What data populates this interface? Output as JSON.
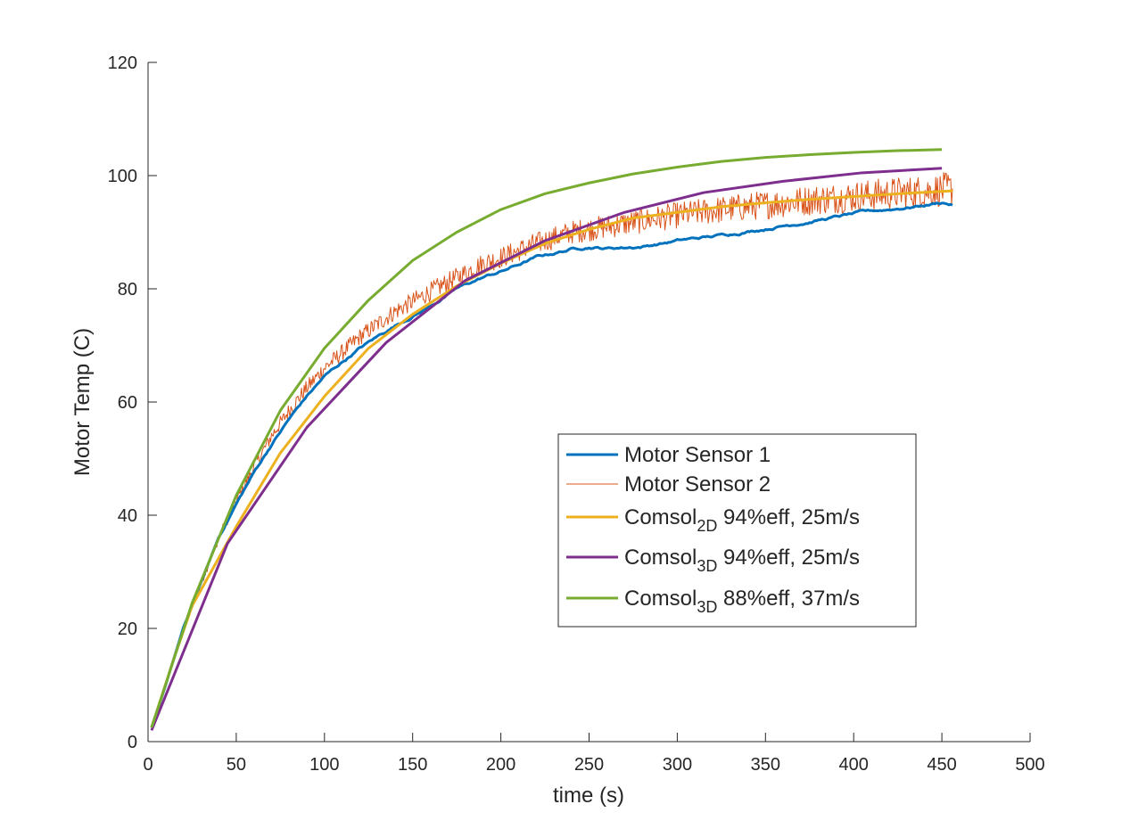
{
  "chart_data": {
    "type": "line",
    "xlabel": "time (s)",
    "ylabel": "Motor Temp (C)",
    "xlim": [
      0,
      500
    ],
    "ylim": [
      0,
      120
    ],
    "xticks": [
      0,
      50,
      100,
      150,
      200,
      250,
      300,
      350,
      400,
      450,
      500
    ],
    "yticks": [
      0,
      20,
      40,
      60,
      80,
      100,
      120
    ],
    "grid": false,
    "legend_position": "center-right",
    "series": [
      {
        "name": "Motor Sensor 1",
        "legend": {
          "main": "Motor Sensor 1",
          "sub": "",
          "rest": ""
        },
        "color": "#0072BD",
        "width": 3,
        "noise": 0.3,
        "x": [
          2,
          10,
          20,
          30,
          40,
          50,
          60,
          70,
          80,
          90,
          100,
          120,
          140,
          160,
          175,
          190,
          200,
          220,
          240,
          250,
          260,
          280,
          300,
          320,
          340,
          360,
          380,
          400,
          420,
          440,
          450,
          456
        ],
        "y": [
          2.5,
          10,
          20,
          28,
          36,
          42,
          47.5,
          52.5,
          57,
          61,
          64.5,
          69.5,
          73.5,
          77,
          80,
          82,
          83,
          85.5,
          87,
          87.5,
          87.2,
          87.5,
          88.5,
          89.2,
          90.2,
          91.2,
          92.2,
          93.2,
          94,
          94.8,
          95.3,
          94.9
        ]
      },
      {
        "name": "Motor Sensor 2",
        "legend": {
          "main": "Motor Sensor 2",
          "sub": "",
          "rest": ""
        },
        "color": "#D95319",
        "width": 1,
        "noise": 1.6,
        "x": [
          2,
          10,
          20,
          30,
          40,
          50,
          60,
          70,
          80,
          90,
          100,
          120,
          140,
          160,
          175,
          190,
          200,
          220,
          240,
          250,
          260,
          280,
          300,
          320,
          340,
          360,
          380,
          400,
          420,
          440,
          450,
          456
        ],
        "y": [
          2.5,
          10,
          20,
          28,
          36,
          42.5,
          48.5,
          54,
          58.5,
          62.5,
          66,
          71.5,
          76,
          79.5,
          82,
          84.5,
          85.5,
          88,
          90,
          90.5,
          91,
          92,
          93,
          93.8,
          94.5,
          95.2,
          95.8,
          96.3,
          96.8,
          97.2,
          97.5,
          97.7
        ]
      },
      {
        "name": "Comsol 2D 94%eff, 25m/s",
        "legend": {
          "main": "Comsol",
          "sub": "2D",
          "rest": " 94%eff, 25m/s"
        },
        "color": "#EDB120",
        "width": 3,
        "noise": 0,
        "x": [
          2,
          15,
          25,
          50,
          75,
          100,
          125,
          150,
          175,
          200,
          225,
          250,
          275,
          300,
          325,
          350,
          375,
          400,
          425,
          450,
          456
        ],
        "y": [
          2.5,
          15,
          24,
          38,
          51,
          61,
          69.5,
          75.5,
          80.5,
          84.5,
          88,
          90.5,
          92.5,
          93.5,
          94.5,
          95.2,
          95.8,
          96.3,
          96.8,
          97.2,
          97.3
        ]
      },
      {
        "name": "Comsol 3D 94%eff, 25m/s",
        "legend": {
          "main": "Comsol",
          "sub": "3D",
          "rest": " 94%eff, 25m/s"
        },
        "color": "#7E2F8E",
        "width": 3,
        "noise": 0,
        "x": [
          2,
          45,
          90,
          135,
          180,
          225,
          270,
          315,
          360,
          405,
          450
        ],
        "y": [
          2,
          35,
          55.5,
          70.5,
          81.5,
          88.5,
          93.5,
          97,
          99,
          100.5,
          101.3
        ]
      },
      {
        "name": "Comsol 3D 88%eff, 37m/s",
        "legend": {
          "main": "Comsol",
          "sub": "3D",
          "rest": " 88%eff, 37m/s"
        },
        "color": "#77AC30",
        "width": 3,
        "noise": 0,
        "x": [
          2,
          25,
          50,
          75,
          100,
          125,
          150,
          175,
          200,
          225,
          250,
          275,
          300,
          325,
          350,
          375,
          400,
          425,
          450
        ],
        "y": [
          2.5,
          24.5,
          43.5,
          58.5,
          69.5,
          78,
          85,
          90,
          94,
          96.8,
          98.7,
          100.3,
          101.5,
          102.5,
          103.2,
          103.7,
          104.1,
          104.4,
          104.6
        ]
      }
    ]
  }
}
